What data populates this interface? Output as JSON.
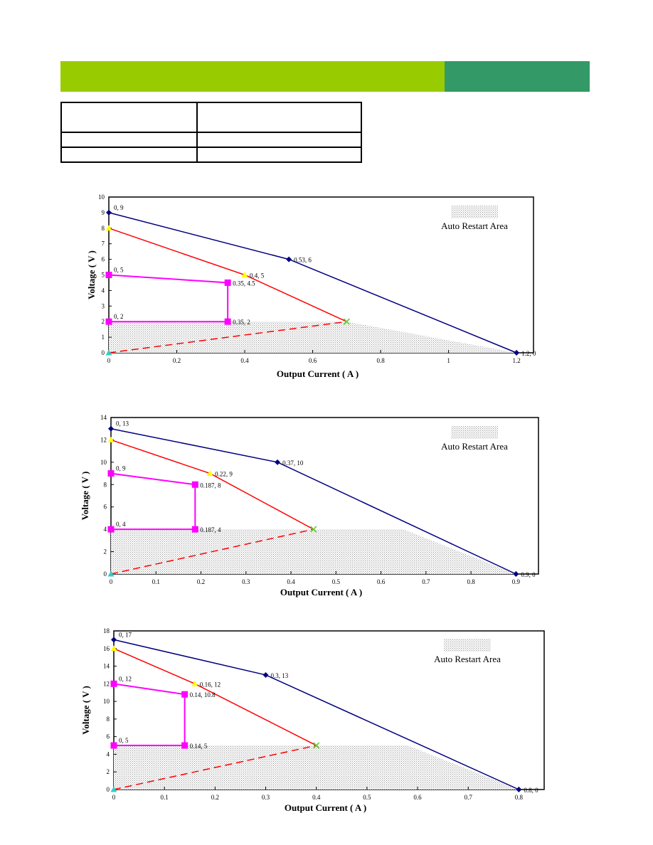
{
  "header": {
    "band_colors": [
      "#99cc00",
      "#339966"
    ]
  },
  "spec_table": {
    "rows": [
      [
        "",
        ""
      ],
      [
        "",
        ""
      ],
      [
        "",
        ""
      ]
    ]
  },
  "colors": {
    "outer_curve": "#000080",
    "mid_curve": "#ff0000",
    "inner_curve": "#ff00ff",
    "mid_marker": "#ffff00",
    "end_marker": "#66cc33",
    "origin_marker": "#33cccc",
    "restart_hatch": "#999999"
  },
  "chart_data": [
    {
      "type": "line",
      "xlabel": "Output Current ( A )",
      "ylabel": "Voltage ( V )",
      "xlim": [
        0,
        1.25
      ],
      "ylim": [
        0,
        10
      ],
      "xticks": [
        0,
        0.2,
        0.4,
        0.6,
        0.8,
        1,
        1.2
      ],
      "xtick_labels": [
        "0",
        "0.2",
        "0.4",
        "0.6",
        "0.8",
        "1",
        "1.2"
      ],
      "yticks": [
        0,
        1,
        2,
        3,
        4,
        5,
        6,
        7,
        8,
        9,
        10
      ],
      "ytick_labels": [
        "0",
        "1",
        "2",
        "3",
        "4",
        "5",
        "6",
        "7",
        "8",
        "9",
        "10"
      ],
      "restart_area": {
        "label": "Auto Restart Area",
        "y_max": 2,
        "x_max_at_top": 0.7,
        "x_max_at_bottom": 1.2
      },
      "series": [
        {
          "points": [
            [
              0,
              9
            ],
            [
              0.53,
              6
            ],
            [
              1.2,
              0
            ]
          ],
          "labels": [
            "0, 9",
            "0.53, 6",
            "1.2, 0"
          ],
          "color": "#000080",
          "marker": "diamond"
        },
        {
          "points": [
            [
              0,
              8
            ],
            [
              0.4,
              5
            ],
            [
              0.7,
              2
            ]
          ],
          "labels": [
            "",
            "0.4, 5",
            ""
          ],
          "color": "#ff0000",
          "marker": "triangle"
        },
        {
          "points": [
            [
              0,
              5
            ],
            [
              0.35,
              4.5
            ],
            [
              0.35,
              2
            ],
            [
              0,
              2
            ]
          ],
          "labels": [
            "0, 5",
            "0.35, 4.5",
            "0.35, 2",
            "0, 2"
          ],
          "color": "#ff00ff",
          "marker": "square"
        },
        {
          "points": [
            [
              0,
              0
            ],
            [
              0.7,
              2
            ]
          ],
          "labels": [
            "",
            ""
          ],
          "color": "#ff0000",
          "dashed": true
        }
      ]
    },
    {
      "type": "line",
      "xlabel": "Output Current ( A )",
      "ylabel": "Voltage ( V )",
      "xlim": [
        0,
        0.95
      ],
      "ylim": [
        0,
        14
      ],
      "xticks": [
        0,
        0.1,
        0.2,
        0.3,
        0.4,
        0.5,
        0.6,
        0.7,
        0.8,
        0.9
      ],
      "xtick_labels": [
        "0",
        "0.1",
        "0.2",
        "0.3",
        "0.4",
        "0.5",
        "0.6",
        "0.7",
        "0.8",
        "0.9"
      ],
      "yticks": [
        0,
        2,
        4,
        6,
        8,
        10,
        12,
        14
      ],
      "ytick_labels": [
        "0",
        "2",
        "4",
        "6",
        "8",
        "10",
        "12",
        "14"
      ],
      "restart_area": {
        "label": "Auto Restart Area",
        "y_max": 4,
        "x_max_at_top": 0.65,
        "x_max_at_bottom": 0.9
      },
      "series": [
        {
          "points": [
            [
              0,
              13
            ],
            [
              0.37,
              10
            ],
            [
              0.9,
              0
            ]
          ],
          "labels": [
            "0, 13",
            "0.37, 10",
            "0.9, 0"
          ],
          "color": "#000080",
          "marker": "diamond"
        },
        {
          "points": [
            [
              0,
              12
            ],
            [
              0.22,
              9
            ],
            [
              0.45,
              4
            ]
          ],
          "labels": [
            "",
            "0.22, 9",
            ""
          ],
          "color": "#ff0000",
          "marker": "triangle"
        },
        {
          "points": [
            [
              0,
              9
            ],
            [
              0.187,
              8
            ],
            [
              0.187,
              4
            ],
            [
              0,
              4
            ]
          ],
          "labels": [
            "0, 9",
            "0.187, 8",
            "0.187, 4",
            "0, 4"
          ],
          "color": "#ff00ff",
          "marker": "square"
        },
        {
          "points": [
            [
              0,
              0
            ],
            [
              0.45,
              4
            ]
          ],
          "labels": [
            "",
            ""
          ],
          "color": "#ff0000",
          "dashed": true
        }
      ]
    },
    {
      "type": "line",
      "xlabel": "Output Current ( A )",
      "ylabel": "Voltage ( V )",
      "xlim": [
        0,
        0.85
      ],
      "ylim": [
        0,
        18
      ],
      "xticks": [
        0,
        0.1,
        0.2,
        0.3,
        0.4,
        0.5,
        0.6,
        0.7,
        0.8
      ],
      "xtick_labels": [
        "0",
        "0.1",
        "0.2",
        "0.3",
        "0.4",
        "0.5",
        "0.6",
        "0.7",
        "0.8"
      ],
      "yticks": [
        0,
        2,
        4,
        6,
        8,
        10,
        12,
        14,
        16,
        18
      ],
      "ytick_labels": [
        "0",
        "2",
        "4",
        "6",
        "8",
        "10",
        "12",
        "14",
        "16",
        "18"
      ],
      "restart_area": {
        "label": "Auto Restart Area",
        "y_max": 5,
        "x_max_at_top": 0.58,
        "x_max_at_bottom": 0.8
      },
      "series": [
        {
          "points": [
            [
              0,
              17
            ],
            [
              0.3,
              13
            ],
            [
              0.8,
              0
            ]
          ],
          "labels": [
            "0, 17",
            "0.3, 13",
            "0.8, 0"
          ],
          "color": "#000080",
          "marker": "diamond"
        },
        {
          "points": [
            [
              0,
              16
            ],
            [
              0.16,
              12
            ],
            [
              0.4,
              5
            ]
          ],
          "labels": [
            "",
            "0.16, 12",
            ""
          ],
          "color": "#ff0000",
          "marker": "triangle"
        },
        {
          "points": [
            [
              0,
              12
            ],
            [
              0.14,
              10.8
            ],
            [
              0.14,
              5
            ],
            [
              0,
              5
            ]
          ],
          "labels": [
            "0, 12",
            "0.14, 10.8",
            "0.14, 5",
            "0, 5"
          ],
          "color": "#ff00ff",
          "marker": "square"
        },
        {
          "points": [
            [
              0,
              0
            ],
            [
              0.4,
              5
            ]
          ],
          "labels": [
            "",
            ""
          ],
          "color": "#ff0000",
          "dashed": true
        }
      ]
    }
  ]
}
